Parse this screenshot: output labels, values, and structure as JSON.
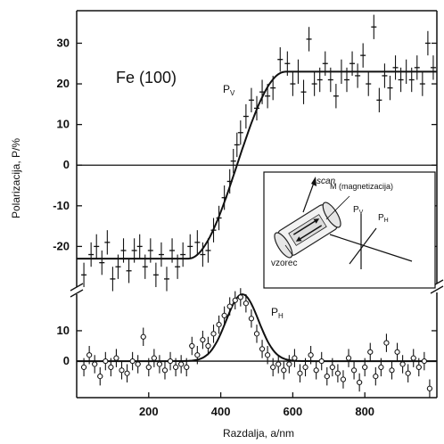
{
  "chart_data": {
    "type": "scatter",
    "xlabel": "Razdalja, a/nm",
    "ylabel": "Polarizacija, P/%",
    "xlim": [
      0,
      1000
    ],
    "x_ticks": [
      200,
      400,
      600,
      800
    ],
    "grid": false,
    "annotations": {
      "sample": "Fe (100)",
      "pv_label": "P",
      "pv_sub": "V",
      "ph_label": "P",
      "ph_sub": "H"
    },
    "panels": [
      {
        "name": "Pv",
        "ylim": [
          -30,
          38
        ],
        "y_ticks": [
          -20,
          -10,
          0,
          10,
          20,
          30
        ],
        "zero_line": true,
        "fit": {
          "shape": "step",
          "low": -23,
          "high": 23,
          "x_start": 310,
          "x_end": 580
        },
        "points": [
          {
            "x": 20,
            "y": -27,
            "err": 3
          },
          {
            "x": 40,
            "y": -22,
            "err": 3
          },
          {
            "x": 55,
            "y": -20,
            "err": 3
          },
          {
            "x": 70,
            "y": -24,
            "err": 3
          },
          {
            "x": 85,
            "y": -19,
            "err": 3
          },
          {
            "x": 100,
            "y": -28,
            "err": 3
          },
          {
            "x": 115,
            "y": -25,
            "err": 3
          },
          {
            "x": 130,
            "y": -21,
            "err": 3
          },
          {
            "x": 145,
            "y": -26,
            "err": 3
          },
          {
            "x": 160,
            "y": -21,
            "err": 3
          },
          {
            "x": 175,
            "y": -20,
            "err": 3
          },
          {
            "x": 190,
            "y": -25,
            "err": 3
          },
          {
            "x": 205,
            "y": -21,
            "err": 3
          },
          {
            "x": 220,
            "y": -27,
            "err": 3
          },
          {
            "x": 235,
            "y": -22,
            "err": 3
          },
          {
            "x": 250,
            "y": -28,
            "err": 3
          },
          {
            "x": 265,
            "y": -21,
            "err": 3
          },
          {
            "x": 280,
            "y": -25,
            "err": 3
          },
          {
            "x": 295,
            "y": -22,
            "err": 3
          },
          {
            "x": 315,
            "y": -20,
            "err": 3
          },
          {
            "x": 335,
            "y": -19,
            "err": 3
          },
          {
            "x": 350,
            "y": -22,
            "err": 3
          },
          {
            "x": 365,
            "y": -21,
            "err": 3
          },
          {
            "x": 380,
            "y": -16,
            "err": 3
          },
          {
            "x": 395,
            "y": -13,
            "err": 3
          },
          {
            "x": 410,
            "y": -8,
            "err": 3
          },
          {
            "x": 425,
            "y": -4,
            "err": 3
          },
          {
            "x": 435,
            "y": 1,
            "err": 3
          },
          {
            "x": 445,
            "y": 5,
            "err": 3
          },
          {
            "x": 455,
            "y": 8,
            "err": 3
          },
          {
            "x": 470,
            "y": 12,
            "err": 3
          },
          {
            "x": 485,
            "y": 16,
            "err": 3
          },
          {
            "x": 500,
            "y": 14,
            "err": 3
          },
          {
            "x": 515,
            "y": 18,
            "err": 3
          },
          {
            "x": 530,
            "y": 17,
            "err": 3
          },
          {
            "x": 545,
            "y": 19,
            "err": 3
          },
          {
            "x": 565,
            "y": 26,
            "err": 3
          },
          {
            "x": 585,
            "y": 25,
            "err": 3
          },
          {
            "x": 600,
            "y": 20,
            "err": 3
          },
          {
            "x": 615,
            "y": 23,
            "err": 3
          },
          {
            "x": 630,
            "y": 18,
            "err": 3
          },
          {
            "x": 645,
            "y": 31,
            "err": 3
          },
          {
            "x": 660,
            "y": 20,
            "err": 3
          },
          {
            "x": 675,
            "y": 21,
            "err": 3
          },
          {
            "x": 690,
            "y": 25,
            "err": 3
          },
          {
            "x": 705,
            "y": 21,
            "err": 3
          },
          {
            "x": 720,
            "y": 17,
            "err": 3
          },
          {
            "x": 735,
            "y": 23,
            "err": 3
          },
          {
            "x": 750,
            "y": 21,
            "err": 3
          },
          {
            "x": 765,
            "y": 25,
            "err": 3
          },
          {
            "x": 780,
            "y": 22,
            "err": 3
          },
          {
            "x": 795,
            "y": 27,
            "err": 3
          },
          {
            "x": 810,
            "y": 20,
            "err": 3
          },
          {
            "x": 825,
            "y": 34,
            "err": 3
          },
          {
            "x": 840,
            "y": 16,
            "err": 3
          },
          {
            "x": 855,
            "y": 22,
            "err": 3
          },
          {
            "x": 870,
            "y": 19,
            "err": 3
          },
          {
            "x": 885,
            "y": 24,
            "err": 3
          },
          {
            "x": 900,
            "y": 21,
            "err": 3
          },
          {
            "x": 915,
            "y": 23,
            "err": 3
          },
          {
            "x": 930,
            "y": 21,
            "err": 3
          },
          {
            "x": 945,
            "y": 24,
            "err": 3
          },
          {
            "x": 960,
            "y": 20,
            "err": 3
          },
          {
            "x": 975,
            "y": 30,
            "err": 3
          },
          {
            "x": 990,
            "y": 24,
            "err": 3
          }
        ]
      },
      {
        "name": "Ph",
        "ylim": [
          -12,
          22
        ],
        "y_ticks": [
          0,
          10
        ],
        "zero_line": true,
        "fit": {
          "shape": "gaussian",
          "center": 460,
          "sigma": 45,
          "amplitude": 22
        },
        "points": [
          {
            "x": 20,
            "y": -2,
            "err": 3
          },
          {
            "x": 35,
            "y": 2,
            "err": 3
          },
          {
            "x": 50,
            "y": -1,
            "err": 3
          },
          {
            "x": 65,
            "y": -5,
            "err": 3
          },
          {
            "x": 80,
            "y": 0,
            "err": 3
          },
          {
            "x": 95,
            "y": -2,
            "err": 3
          },
          {
            "x": 110,
            "y": 1,
            "err": 3
          },
          {
            "x": 125,
            "y": -3,
            "err": 3
          },
          {
            "x": 140,
            "y": -4,
            "err": 3
          },
          {
            "x": 155,
            "y": 0,
            "err": 3
          },
          {
            "x": 170,
            "y": -1,
            "err": 3
          },
          {
            "x": 185,
            "y": 8,
            "err": 3
          },
          {
            "x": 200,
            "y": -2,
            "err": 3
          },
          {
            "x": 215,
            "y": 1,
            "err": 3
          },
          {
            "x": 230,
            "y": -1,
            "err": 3
          },
          {
            "x": 245,
            "y": -3,
            "err": 3
          },
          {
            "x": 260,
            "y": 0,
            "err": 3
          },
          {
            "x": 275,
            "y": -2,
            "err": 3
          },
          {
            "x": 290,
            "y": -1,
            "err": 3
          },
          {
            "x": 305,
            "y": -2,
            "err": 3
          },
          {
            "x": 320,
            "y": 5,
            "err": 3
          },
          {
            "x": 335,
            "y": 2,
            "err": 3
          },
          {
            "x": 350,
            "y": 7,
            "err": 3
          },
          {
            "x": 365,
            "y": 5,
            "err": 3
          },
          {
            "x": 380,
            "y": 9,
            "err": 3
          },
          {
            "x": 395,
            "y": 12,
            "err": 3
          },
          {
            "x": 410,
            "y": 15,
            "err": 3
          },
          {
            "x": 425,
            "y": 18,
            "err": 3
          },
          {
            "x": 440,
            "y": 20,
            "err": 3
          },
          {
            "x": 455,
            "y": 21,
            "err": 3
          },
          {
            "x": 470,
            "y": 19,
            "err": 3
          },
          {
            "x": 485,
            "y": 14,
            "err": 3
          },
          {
            "x": 500,
            "y": 9,
            "err": 3
          },
          {
            "x": 515,
            "y": 4,
            "err": 3
          },
          {
            "x": 530,
            "y": 2,
            "err": 3
          },
          {
            "x": 545,
            "y": -2,
            "err": 3
          },
          {
            "x": 560,
            "y": -1,
            "err": 3
          },
          {
            "x": 575,
            "y": -3,
            "err": 3
          },
          {
            "x": 590,
            "y": -1,
            "err": 3
          },
          {
            "x": 605,
            "y": 1,
            "err": 3
          },
          {
            "x": 620,
            "y": -4,
            "err": 3
          },
          {
            "x": 635,
            "y": -2,
            "err": 3
          },
          {
            "x": 650,
            "y": 2,
            "err": 3
          },
          {
            "x": 665,
            "y": -3,
            "err": 3
          },
          {
            "x": 680,
            "y": 0,
            "err": 3
          },
          {
            "x": 695,
            "y": -5,
            "err": 3
          },
          {
            "x": 710,
            "y": -2,
            "err": 3
          },
          {
            "x": 725,
            "y": -4,
            "err": 3
          },
          {
            "x": 740,
            "y": -6,
            "err": 3
          },
          {
            "x": 755,
            "y": 1,
            "err": 3
          },
          {
            "x": 770,
            "y": -3,
            "err": 3
          },
          {
            "x": 785,
            "y": -7,
            "err": 3
          },
          {
            "x": 800,
            "y": -2,
            "err": 3
          },
          {
            "x": 815,
            "y": 3,
            "err": 3
          },
          {
            "x": 830,
            "y": -5,
            "err": 3
          },
          {
            "x": 845,
            "y": -2,
            "err": 3
          },
          {
            "x": 860,
            "y": 6,
            "err": 3
          },
          {
            "x": 875,
            "y": -3,
            "err": 3
          },
          {
            "x": 890,
            "y": 3,
            "err": 3
          },
          {
            "x": 905,
            "y": -1,
            "err": 3
          },
          {
            "x": 920,
            "y": -4,
            "err": 3
          },
          {
            "x": 935,
            "y": 1,
            "err": 3
          },
          {
            "x": 950,
            "y": -2,
            "err": 3
          },
          {
            "x": 965,
            "y": 0,
            "err": 3
          },
          {
            "x": 980,
            "y": -9,
            "err": 3
          }
        ]
      }
    ],
    "inset": {
      "label_scan": "scan",
      "label_m": "M (magnetizacija)",
      "label_sample": "vzorec",
      "label_pv": "P",
      "label_pv_sub": "V",
      "label_ph": "P",
      "label_ph_sub": "H"
    }
  }
}
